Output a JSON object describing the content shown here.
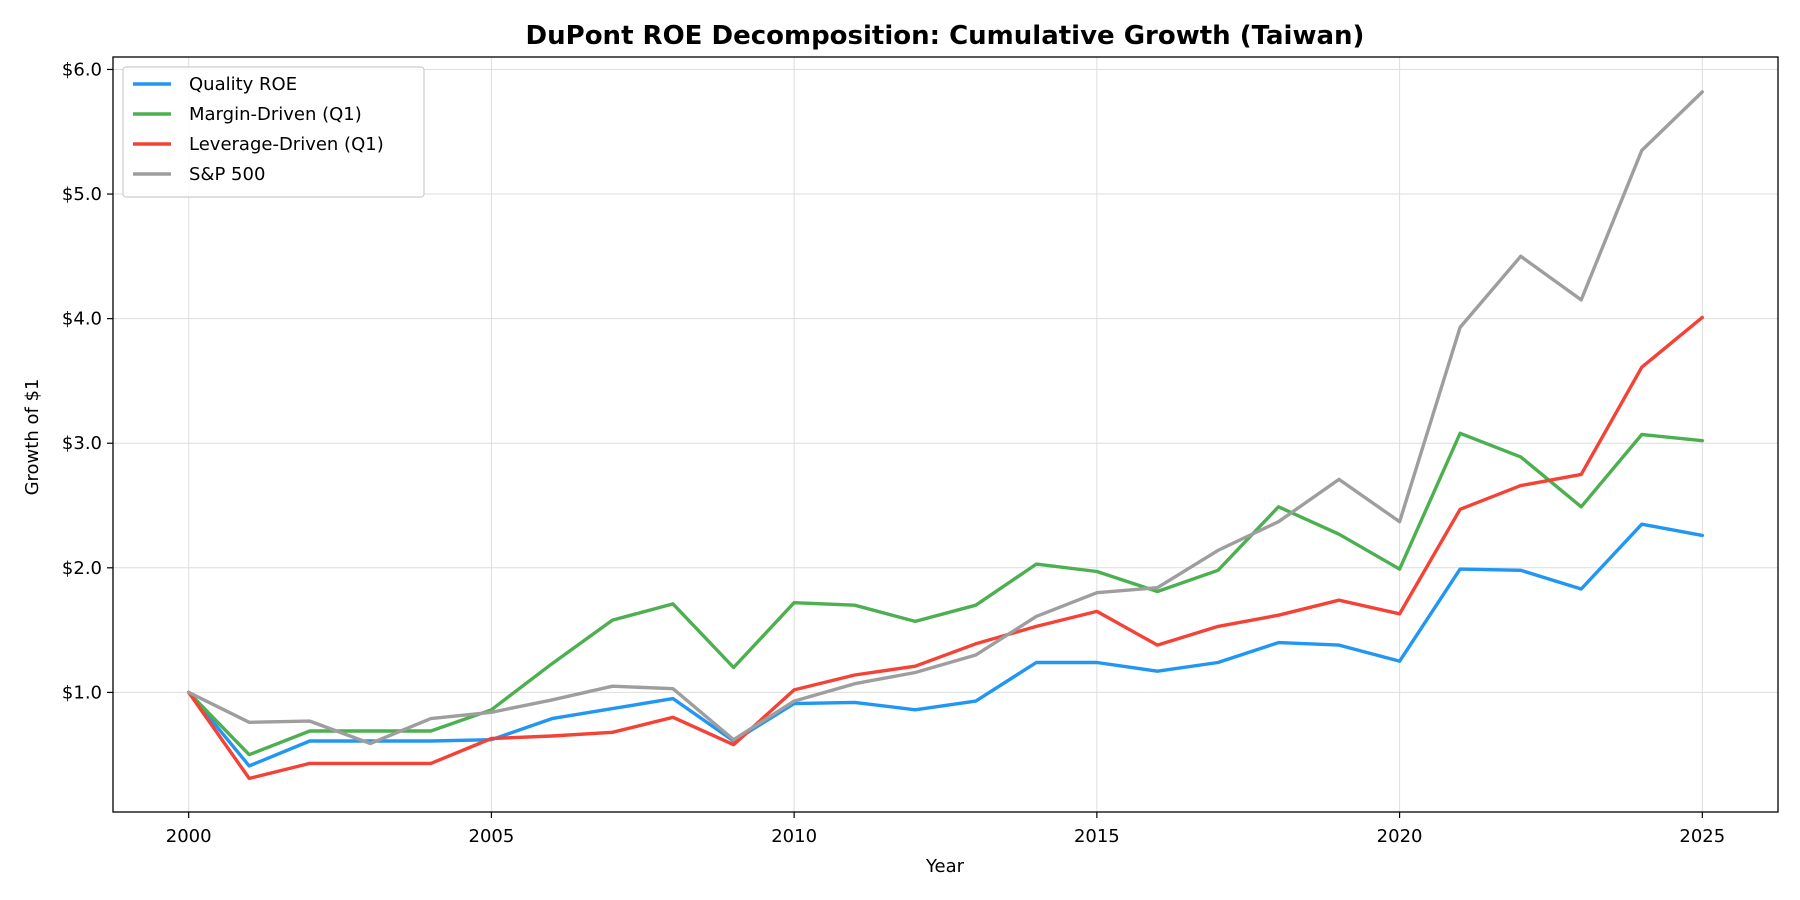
{
  "chart_data": {
    "type": "line",
    "title": "DuPont ROE Decomposition: Cumulative Growth (Taiwan)",
    "xlabel": "Year",
    "ylabel": "Growth of $1",
    "xlim": [
      1998.75,
      2026.25
    ],
    "ylim": [
      0.04,
      6.1
    ],
    "x_ticks": [
      2000,
      2005,
      2010,
      2015,
      2020,
      2025
    ],
    "x_tick_labels": [
      "2000",
      "2005",
      "2010",
      "2015",
      "2020",
      "2025"
    ],
    "y_ticks": [
      1.0,
      2.0,
      3.0,
      4.0,
      5.0,
      6.0
    ],
    "y_tick_labels": [
      "$1.0",
      "$2.0",
      "$3.0",
      "$4.0",
      "$5.0",
      "$6.0"
    ],
    "grid": true,
    "legend_position": "upper-left",
    "x": [
      2000,
      2001,
      2002,
      2003,
      2004,
      2005,
      2006,
      2007,
      2008,
      2009,
      2010,
      2011,
      2012,
      2013,
      2014,
      2015,
      2016,
      2017,
      2018,
      2019,
      2020,
      2021,
      2022,
      2023,
      2024,
      2025
    ],
    "series": [
      {
        "name": "Quality ROE",
        "color": "#2196F3",
        "values": [
          1.0,
          0.41,
          0.61,
          0.61,
          0.61,
          0.62,
          0.79,
          0.87,
          0.95,
          0.61,
          0.91,
          0.92,
          0.86,
          0.93,
          1.24,
          1.24,
          1.17,
          1.24,
          1.4,
          1.38,
          1.25,
          1.99,
          1.98,
          1.83,
          2.35,
          2.26
        ]
      },
      {
        "name": "Margin-Driven (Q1)",
        "color": "#4CAF50",
        "values": [
          1.0,
          0.5,
          0.69,
          0.69,
          0.69,
          0.86,
          1.23,
          1.58,
          1.71,
          1.2,
          1.72,
          1.7,
          1.57,
          1.7,
          2.03,
          1.97,
          1.81,
          1.98,
          2.49,
          2.27,
          1.99,
          3.08,
          2.89,
          2.49,
          3.07,
          3.02
        ]
      },
      {
        "name": "Leverage-Driven (Q1)",
        "color": "#F44336",
        "values": [
          1.0,
          0.31,
          0.43,
          0.43,
          0.43,
          0.63,
          0.65,
          0.68,
          0.8,
          0.58,
          1.02,
          1.14,
          1.21,
          1.39,
          1.53,
          1.65,
          1.38,
          1.53,
          1.62,
          1.74,
          1.63,
          2.47,
          2.66,
          2.75,
          3.61,
          4.01
        ]
      },
      {
        "name": "S&P 500",
        "color": "#9E9E9E",
        "values": [
          1.0,
          0.76,
          0.77,
          0.59,
          0.79,
          0.84,
          0.94,
          1.05,
          1.03,
          0.62,
          0.93,
          1.07,
          1.16,
          1.3,
          1.61,
          1.8,
          1.84,
          2.14,
          2.37,
          2.71,
          2.37,
          3.93,
          4.5,
          4.15,
          5.35,
          5.82
        ]
      }
    ]
  }
}
